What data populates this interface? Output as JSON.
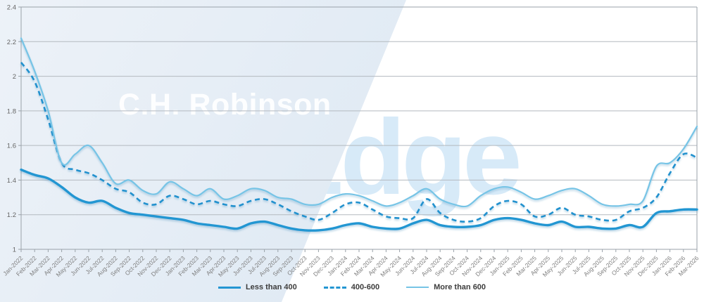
{
  "watermarks": {
    "company": "C.H. Robinson",
    "product": "Edge"
  },
  "colors": {
    "accent_solid": "#2496d2",
    "accent_dashed": "#2191ce",
    "accent_light": "#76c4e6",
    "background_left": "#e0eaf4",
    "background_right": "#ffffff",
    "gridline": "#b3b9bf",
    "axis_frame": "#9aa2a9",
    "x_tick_label": "#808080",
    "y_tick_label": "#666666",
    "legend_text": "#3c3c3c",
    "watermark_edge": "#d7eaf8"
  },
  "chart_data": {
    "type": "line",
    "title": "",
    "xlabel": "",
    "ylabel": "",
    "grid": true,
    "legend_position": "bottom",
    "ylim": [
      1,
      2.4
    ],
    "y_tick_labels": [
      "1",
      "1.2",
      "1.4",
      "1.6",
      "1.8",
      "2",
      "2.2",
      "2.4"
    ],
    "x": [
      "Jan-2022",
      "Feb-2022",
      "Mar-2022",
      "Apr-2022",
      "May-2022",
      "Jun-2022",
      "Jul-2022",
      "Aug-2022",
      "Sep-2022",
      "Oct-2022",
      "Nov-2022",
      "Dec-2022",
      "Jan-2023",
      "Feb-2023",
      "Mar-2023",
      "Apr-2023",
      "May-2023",
      "Jun-2023",
      "Jul-2023",
      "Aug-2023",
      "Sep-2023",
      "Oct-2023",
      "Nov-2023",
      "Dec-2023",
      "Jan-2024",
      "Feb-2024",
      "Mar-2024",
      "Apr-2024",
      "May-2024",
      "Jun-2024",
      "Jul-2024",
      "Aug-2024",
      "Sep-2024",
      "Oct-2024",
      "Nov-2024",
      "Dec-2024",
      "Jan-2025",
      "Feb-2025",
      "Mar-2025",
      "Apr-2025",
      "May-2025",
      "Jun-2025",
      "Jul-2025",
      "Aug-2025",
      "Sep-2025",
      "Oct-2025",
      "Nov-2025",
      "Dec-2025",
      "Jan-2026",
      "Feb-2026",
      "Mar-2026"
    ],
    "series": [
      {
        "name": "Less than 400",
        "style": "solid-thick",
        "color": "#2496d2",
        "values": [
          1.46,
          1.43,
          1.41,
          1.36,
          1.3,
          1.27,
          1.28,
          1.24,
          1.21,
          1.2,
          1.19,
          1.18,
          1.17,
          1.15,
          1.14,
          1.13,
          1.12,
          1.15,
          1.16,
          1.14,
          1.12,
          1.11,
          1.11,
          1.12,
          1.14,
          1.15,
          1.13,
          1.12,
          1.12,
          1.15,
          1.17,
          1.14,
          1.13,
          1.13,
          1.14,
          1.17,
          1.18,
          1.17,
          1.15,
          1.14,
          1.16,
          1.13,
          1.13,
          1.12,
          1.12,
          1.14,
          1.13,
          1.21,
          1.22,
          1.23,
          1.23
        ]
      },
      {
        "name": "400-600",
        "style": "dashed",
        "color": "#2191ce",
        "values": [
          2.08,
          1.97,
          1.75,
          1.5,
          1.46,
          1.44,
          1.4,
          1.35,
          1.33,
          1.27,
          1.26,
          1.31,
          1.29,
          1.26,
          1.28,
          1.26,
          1.25,
          1.28,
          1.29,
          1.26,
          1.22,
          1.19,
          1.17,
          1.21,
          1.26,
          1.27,
          1.23,
          1.19,
          1.18,
          1.18,
          1.29,
          1.21,
          1.17,
          1.16,
          1.18,
          1.25,
          1.28,
          1.26,
          1.19,
          1.2,
          1.24,
          1.2,
          1.19,
          1.17,
          1.17,
          1.22,
          1.24,
          1.3,
          1.44,
          1.55,
          1.53
        ]
      },
      {
        "name": "More than 600",
        "style": "solid-thin",
        "color": "#76c4e6",
        "values": [
          2.22,
          2.03,
          1.8,
          1.5,
          1.55,
          1.6,
          1.5,
          1.38,
          1.4,
          1.34,
          1.32,
          1.39,
          1.35,
          1.31,
          1.35,
          1.29,
          1.31,
          1.35,
          1.34,
          1.3,
          1.29,
          1.26,
          1.26,
          1.3,
          1.32,
          1.31,
          1.28,
          1.25,
          1.27,
          1.31,
          1.35,
          1.29,
          1.26,
          1.25,
          1.31,
          1.35,
          1.36,
          1.33,
          1.29,
          1.31,
          1.34,
          1.35,
          1.31,
          1.26,
          1.25,
          1.26,
          1.28,
          1.48,
          1.5,
          1.58,
          1.71
        ]
      }
    ]
  }
}
